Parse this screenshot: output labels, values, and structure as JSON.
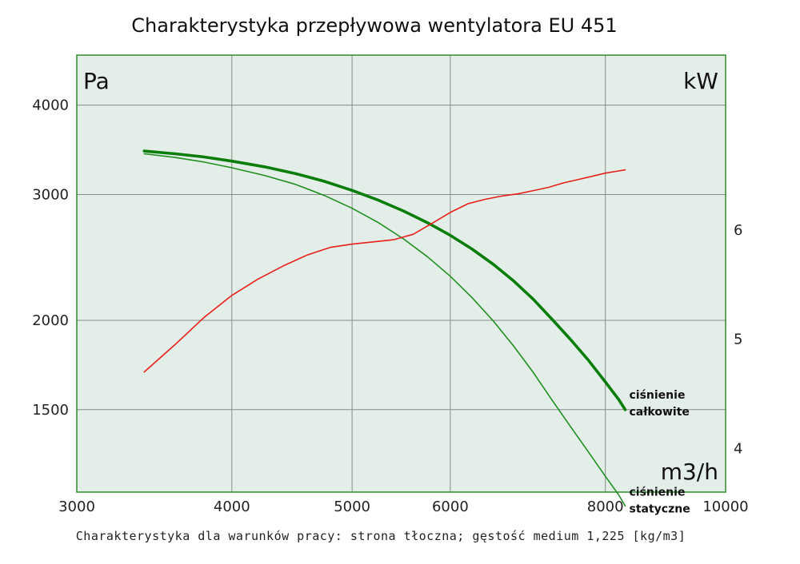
{
  "chart_data": {
    "type": "line",
    "title": "Charakterystyka przepływowa wentylatora EU 451",
    "footnote": "Charakterystyka dla warunków pracy: strona tłoczna; gęstość medium 1,225 [kg/m3]",
    "x_scale": "log",
    "y_left_scale": "log",
    "xlim": [
      3000,
      10000
    ],
    "ylim_left": [
      1150,
      4700
    ],
    "ylim_right": [
      3.6,
      7.6
    ],
    "x_unit": "m3/h",
    "y_left_unit": "Pa",
    "y_right_unit": "kW",
    "x_ticks": [
      3000,
      4000,
      5000,
      6000,
      8000,
      10000
    ],
    "y_left_ticks": [
      1500,
      2000,
      3000,
      4000
    ],
    "y_right_ticks": [
      4,
      5,
      6
    ],
    "grid": true,
    "colors": {
      "background": "#e4eee8",
      "frame": "#2e8b2e",
      "total_pressure": "#0a7d0a",
      "static_pressure": "#1f8f1f",
      "power": "#e8201a",
      "grid": "#8a8a8a"
    },
    "series": [
      {
        "label": [
          "ciśnienie",
          "całkowite"
        ],
        "axis": "left",
        "x": [
          3400,
          3600,
          3800,
          4000,
          4250,
          4500,
          4750,
          5000,
          5250,
          5500,
          5750,
          6000,
          6250,
          6500,
          6750,
          7000,
          7250,
          7500,
          7750,
          8000,
          8200,
          8300
        ],
        "values": [
          3450,
          3420,
          3385,
          3340,
          3280,
          3210,
          3130,
          3040,
          2945,
          2845,
          2740,
          2630,
          2515,
          2395,
          2270,
          2140,
          2005,
          1880,
          1760,
          1640,
          1550,
          1500
        ]
      },
      {
        "label": [
          "ciśnienie",
          "statyczne"
        ],
        "axis": "left",
        "x": [
          3400,
          3600,
          3800,
          4000,
          4250,
          4500,
          4750,
          5000,
          5250,
          5500,
          5750,
          6000,
          6250,
          6500,
          6750,
          7000,
          7250,
          7500,
          7750,
          8000,
          8200,
          8300
        ],
        "values": [
          3420,
          3380,
          3330,
          3270,
          3190,
          3100,
          2990,
          2870,
          2740,
          2600,
          2455,
          2305,
          2150,
          1995,
          1840,
          1690,
          1545,
          1420,
          1310,
          1210,
          1140,
          1100
        ]
      },
      {
        "axis": "right",
        "x": [
          3400,
          3600,
          3800,
          4000,
          4200,
          4400,
          4600,
          4800,
          5000,
          5200,
          5400,
          5600,
          5800,
          6000,
          6200,
          6400,
          6600,
          6800,
          7000,
          7200,
          7400,
          7600,
          7800,
          8000,
          8200,
          8300
        ],
        "values": [
          4.7,
          4.95,
          5.2,
          5.4,
          5.55,
          5.67,
          5.77,
          5.84,
          5.87,
          5.89,
          5.91,
          5.96,
          6.06,
          6.16,
          6.24,
          6.28,
          6.31,
          6.33,
          6.36,
          6.39,
          6.43,
          6.46,
          6.49,
          6.52,
          6.54,
          6.55
        ]
      }
    ]
  }
}
